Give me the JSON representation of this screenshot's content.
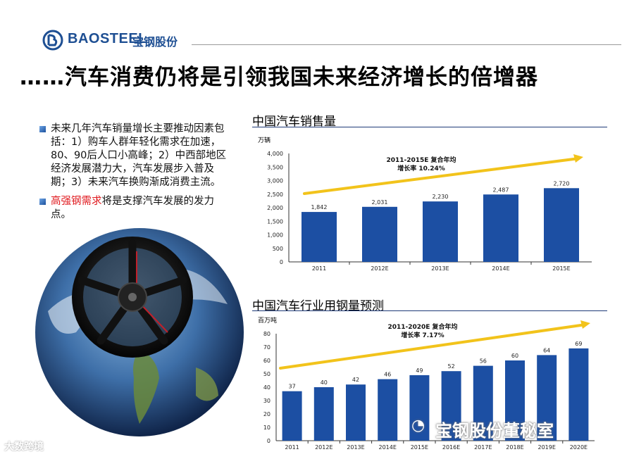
{
  "header": {
    "logo_text": "BAOSTEEL",
    "logo_cn": "宝钢股份",
    "title": "……汽车消费仍将是引领我国未来经济增长的倍增器"
  },
  "bullets": [
    {
      "text": "未来几年汽车销量增长主要推动因素包括：1）购车人群年轻化需求在加速，80、90后人口小高峰；2）中西部地区经济发展潜力大，汽车发展步入普及期；3）未来汽车换购渐成消费主流。"
    },
    {
      "highlight": "高强钢需求",
      "rest": "将是支撑汽车发展的发力点。"
    }
  ],
  "chart_data": [
    {
      "type": "bar",
      "title": "中国汽车销售量",
      "ylabel": "万辆",
      "categories": [
        "2011",
        "2012E",
        "2013E",
        "2014E",
        "2015E"
      ],
      "values": [
        1842,
        2031,
        2230,
        2487,
        2720
      ],
      "value_labels": [
        "1,842",
        "2,031",
        "2,230",
        "2,487",
        "2,720"
      ],
      "ylim": [
        0,
        4000
      ],
      "yticks": [
        "0",
        "500",
        "1,000",
        "1,500",
        "2,000",
        "2,500",
        "3,000",
        "3,500",
        "4,000"
      ],
      "annotation": [
        "2011-2015E 复合年均",
        "增长率 10.24%"
      ],
      "bar_color": "#1c4fa3",
      "arrow_color": "#f2c31b"
    },
    {
      "type": "bar",
      "title": "中国汽车行业用钢量预测",
      "ylabel": "百万吨",
      "categories": [
        "2011",
        "2012E",
        "2013E",
        "2014E",
        "2015E",
        "2016E",
        "2017E",
        "2018E",
        "2019E",
        "2020E"
      ],
      "values": [
        37,
        40,
        42,
        46,
        49,
        52,
        56,
        60,
        64,
        69
      ],
      "value_labels": [
        "37",
        "40",
        "42",
        "46",
        "49",
        "52",
        "56",
        "60",
        "64",
        "69"
      ],
      "ylim": [
        0,
        80
      ],
      "yticks": [
        "0",
        "10",
        "20",
        "30",
        "40",
        "50",
        "60",
        "70",
        "80"
      ],
      "annotation": [
        "2011-2020E 复合年均",
        "增长率 7.17%"
      ],
      "bar_color": "#1c4fa3",
      "arrow_color": "#f2c31b"
    }
  ],
  "watermark": "宝钢股份董秘室",
  "corner_watermark": "大数跨境"
}
